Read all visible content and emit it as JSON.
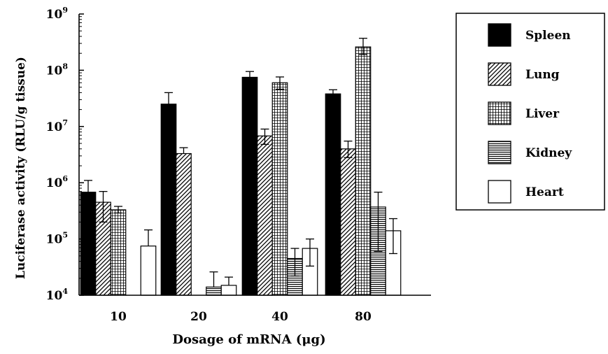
{
  "chart_data": {
    "type": "bar",
    "yscale": "log",
    "title": "",
    "xlabel": "Dosage of mRNA (μg)",
    "ylabel": "Luciferase activity (RLU/g tissue)",
    "ylim": [
      10000,
      1000000000
    ],
    "yticks": [
      {
        "value": 10000,
        "base": "10",
        "exp": "4"
      },
      {
        "value": 100000,
        "base": "10",
        "exp": "5"
      },
      {
        "value": 1000000,
        "base": "10",
        "exp": "6"
      },
      {
        "value": 10000000,
        "base": "10",
        "exp": "7"
      },
      {
        "value": 100000000,
        "base": "10",
        "exp": "8"
      },
      {
        "value": 1000000000,
        "base": "10",
        "exp": "9"
      }
    ],
    "categories": [
      "10",
      "20",
      "40",
      "80"
    ],
    "legend_position": "right",
    "series": [
      {
        "name": "Spleen",
        "pattern": "solid",
        "values": [
          680000,
          25000000,
          75000000,
          38000000
        ],
        "err_high": [
          1100000,
          40000000,
          95000000,
          45000000
        ],
        "err_low": [
          null,
          null,
          null,
          null
        ]
      },
      {
        "name": "Lung",
        "pattern": "diagonal",
        "values": [
          450000,
          3300000,
          6800000,
          4000000
        ],
        "err_high": [
          700000,
          4200000,
          9000000,
          5500000
        ],
        "err_low": [
          200000,
          null,
          4800000,
          2800000
        ]
      },
      {
        "name": "Liver",
        "pattern": "grid",
        "values": [
          330000,
          null,
          60000000,
          260000000
        ],
        "err_high": [
          380000,
          null,
          76000000,
          370000000
        ],
        "err_low": [
          290000,
          null,
          46000000,
          190000000
        ]
      },
      {
        "name": "Kidney",
        "pattern": "horizontal",
        "values": [
          null,
          14000,
          45000,
          370000
        ],
        "err_high": [
          null,
          26000,
          68000,
          680000
        ],
        "err_low": [
          null,
          null,
          22000,
          60000
        ]
      },
      {
        "name": "Heart",
        "pattern": "open",
        "values": [
          75000,
          15000,
          68000,
          140000
        ],
        "err_high": [
          145000,
          21000,
          100000,
          230000
        ],
        "err_low": [
          null,
          null,
          33000,
          55000
        ]
      }
    ]
  }
}
